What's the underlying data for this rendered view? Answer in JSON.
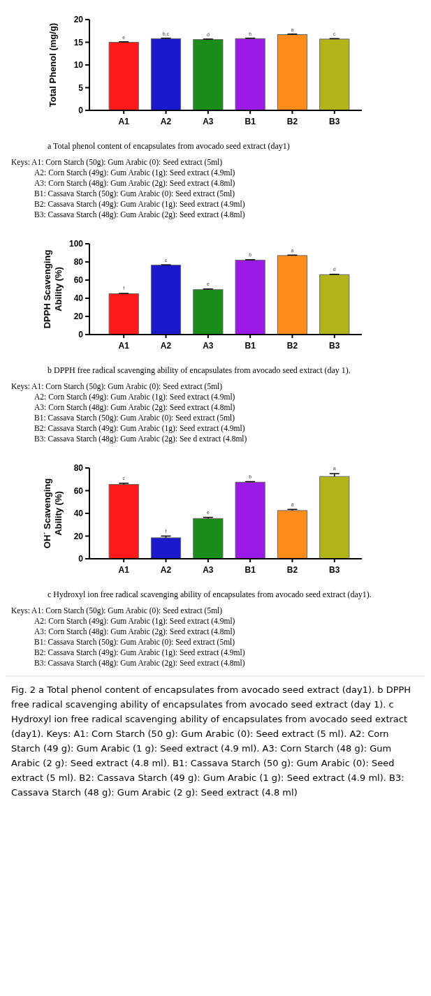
{
  "chart_data": [
    {
      "type": "bar",
      "ylabel": "Total Phenol (mg/g)",
      "categories": [
        "A1",
        "A2",
        "A3",
        "B1",
        "B2",
        "B3"
      ],
      "values": [
        15.0,
        15.8,
        15.6,
        15.8,
        16.7,
        15.7
      ],
      "errors": [
        0.1,
        0.1,
        0.1,
        0.1,
        0.1,
        0.1
      ],
      "colors": [
        "#ff1a1a",
        "#1a1acc",
        "#1a8c1a",
        "#9a1ae6",
        "#ff8c1a",
        "#b3b31a"
      ],
      "ylim": [
        0,
        20
      ],
      "yticks": [
        0,
        5,
        10,
        15,
        20
      ],
      "grid": false,
      "legend": false,
      "annotations": [
        {
          "text": "e",
          "x": "A1",
          "y": 15.1
        },
        {
          "text": "b,c",
          "x": "A2",
          "y": 15.9
        },
        {
          "text": "d",
          "x": "A3",
          "y": 15.7
        },
        {
          "text": "b",
          "x": "B1",
          "y": 15.9
        },
        {
          "text": "a",
          "x": "B2",
          "y": 16.8
        },
        {
          "text": "c",
          "x": "B3",
          "y": 15.8
        },
        "a Total phenol content of encapsulates from avocado seed extract (day1)",
        "Keys: A1: Corn Starch (50g): Gum Arabic (0): Seed extract (5ml)",
        "A2: Corn Starch (49g): Gum Arabic (1g): Seed extract (4.9ml)",
        "A3: Corn Starch (48g): Gum Arabic (2g): Seed extract (4.8ml)",
        "B1: Cassava Starch (50g): Gum Arabic (0): Seed extract (5ml)",
        "B2: Cassava Starch (49g): Gum Arabic (1g): Seed extract (4.9ml)",
        "B3: Cassava Starch (48g): Gum Arabic (2g): Seed extract (4.8ml)"
      ]
    },
    {
      "type": "bar",
      "ylabel": "DPPH Scavenging Ability (%)",
      "categories": [
        "A1",
        "A2",
        "A3",
        "B1",
        "B2",
        "B3"
      ],
      "values": [
        45,
        76.5,
        49.5,
        82,
        87,
        66
      ],
      "errors": [
        0.3,
        0.3,
        0.7,
        0.4,
        0.5,
        0.4
      ],
      "colors": [
        "#ff1a1a",
        "#1a1acc",
        "#1a8c1a",
        "#9a1ae6",
        "#ff8c1a",
        "#b3b31a"
      ],
      "ylim": [
        0,
        100
      ],
      "yticks": [
        0,
        20,
        40,
        60,
        80,
        100
      ],
      "grid": false,
      "legend": false,
      "annotations": [
        {
          "text": "f",
          "x": "A1",
          "y": 46
        },
        {
          "text": "c",
          "x": "A2",
          "y": 77
        },
        {
          "text": "e",
          "x": "A3",
          "y": 50.5
        },
        {
          "text": "b",
          "x": "B1",
          "y": 83
        },
        {
          "text": "a",
          "x": "B2",
          "y": 88
        },
        {
          "text": "d",
          "x": "B3",
          "y": 67
        },
        "b DPPH free radical scavenging ability of encapsulates from avocado seed extract (day 1).",
        "Keys: A1: Corn Starch (50g): Gum Arabic (0): Seed extract (5ml)",
        "A2: Corn Starch (49g): Gum Arabic (1g): Seed extract (4.9ml)",
        "A3: Corn Starch (48g): Gum Arabic (2g): Seed extract (4.8ml)",
        "B1: Cassava Starch (50g): Gum Arabic (0): Seed extract (5ml)",
        "B2: Cassava Starch (49g): Gum Arabic (1g): Seed extract (4.9ml)",
        "B3: Cassava Starch (48g): Gum Arabic (2g): See d extract (4.8ml)"
      ]
    },
    {
      "type": "bar",
      "ylabel": "OH˙ Scavenging Ability (%)",
      "categories": [
        "A1",
        "A2",
        "A3",
        "B1",
        "B2",
        "B3"
      ],
      "values": [
        65.5,
        18.5,
        35.5,
        67.5,
        42.5,
        72.5
      ],
      "errors": [
        1,
        1.5,
        1,
        0.5,
        1,
        2.5
      ],
      "colors": [
        "#ff1a1a",
        "#1a1acc",
        "#1a8c1a",
        "#9a1ae6",
        "#ff8c1a",
        "#b3b31a"
      ],
      "ylim": [
        0,
        80
      ],
      "yticks": [
        0,
        20,
        40,
        60,
        80
      ],
      "grid": false,
      "legend": false,
      "annotations": [
        {
          "text": "c",
          "x": "A1",
          "y": 67
        },
        {
          "text": "f",
          "x": "A2",
          "y": 20.5
        },
        {
          "text": "e",
          "x": "A3",
          "y": 37
        },
        {
          "text": "b",
          "x": "B1",
          "y": 68.5
        },
        {
          "text": "d",
          "x": "B2",
          "y": 44
        },
        {
          "text": "a",
          "x": "B3",
          "y": 75.5
        },
        "c Hydroxyl ion free radical scavenging ability of encapsulates from avocado seed extract (day1).",
        "Keys: A1: Corn Starch (50g): Gum Arabic (0): Seed extract (5ml)",
        "A2: Corn Starch (49g): Gum Arabic (1g): Seed extract (4.9ml)",
        "A3: Corn Starch (48g): Gum Arabic (2g): Seed extract (4.8ml)",
        "B1: Cassava Starch (50g): Gum Arabic (0): Seed extract (5ml)",
        "B2: Cassava Starch (49g): Gum Arabic (1g): Seed extract (4.9ml)",
        "B3: Cassava Starch (48g): Gum Arabic (2g): Seed extract (4.8ml)",
        "Fig. 2 a Total phenol content of encapsulates from avocado seed extract (day1). b DPPH free radical scavenging ability of encapsulates from avocado seed extract (day 1). c Hydroxyl ion free radical scavenging ability of encapsulates from avocado seed extract (day1). Keys: A1: Corn Starch (50 g): Gum Arabic (0): Seed extract (5 ml). A2: Corn Starch (49 g): Gum Arabic (1 g): Seed extract (4.9 ml). A3: Corn Starch (48 g): Gum Arabic (2 g): Seed extract (4.8 ml). B1: Cassava Starch (50 g): Gum Arabic (0): Seed extract (5 ml). B2: Cassava Starch (49 g): Gum Arabic (1 g): Seed extract (4.9 ml). B3: Cassava Starch (48 g): Gum Arabic (2 g): Seed extract (4.8 ml)"
      ]
    }
  ]
}
